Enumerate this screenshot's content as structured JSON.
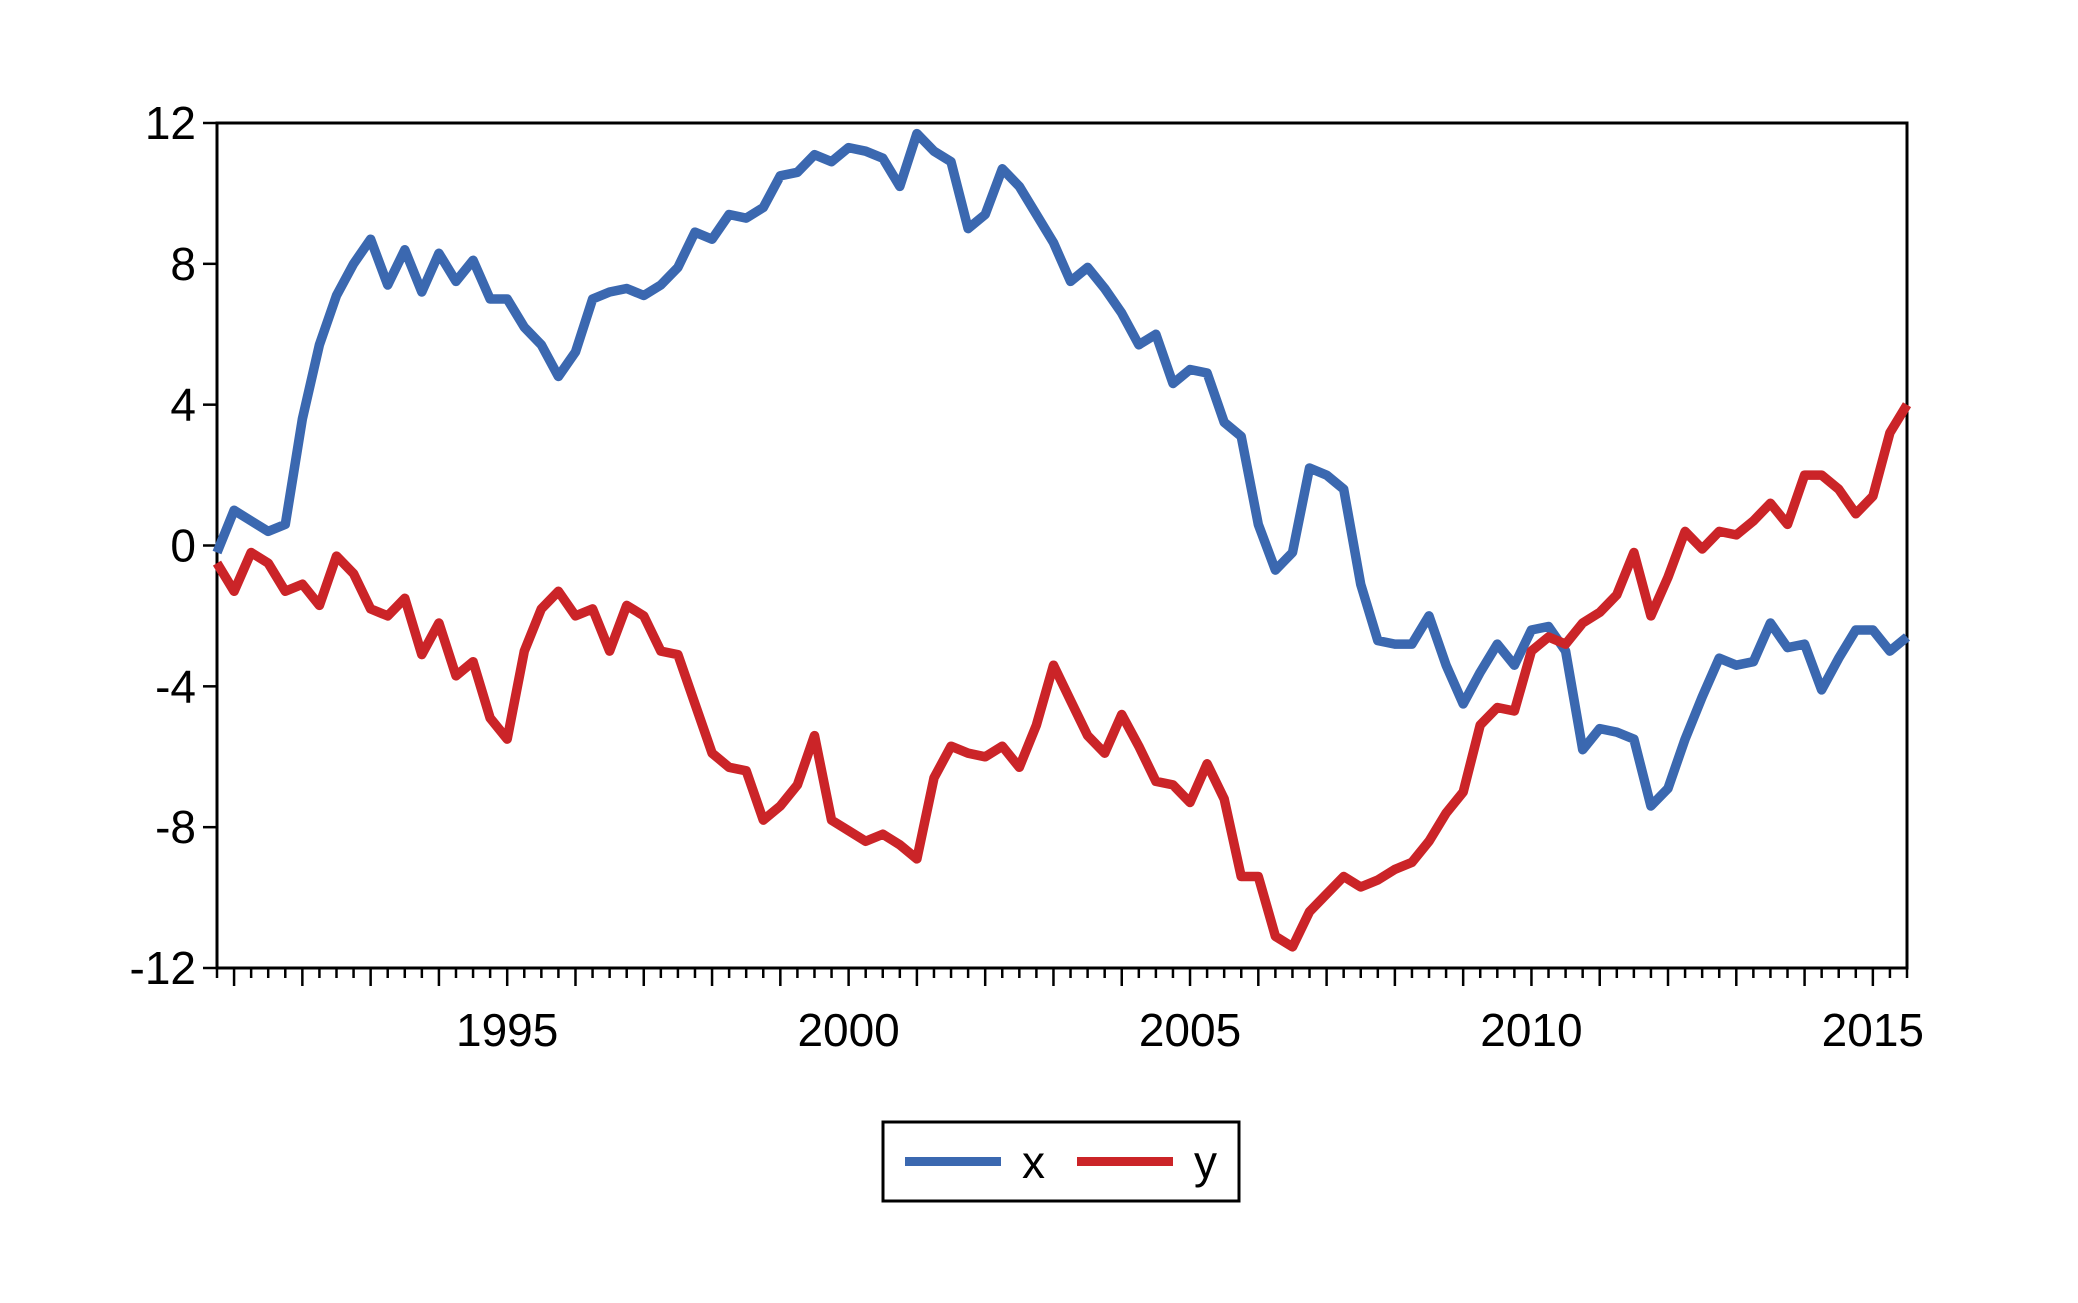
{
  "chart_data": {
    "type": "line",
    "title": "",
    "xlabel": "",
    "ylabel": "",
    "grid": false,
    "background_color": "#ffffff",
    "axis_color": "#000000",
    "frequency": "quarterly",
    "x_start": "1990Q4",
    "x_end": "2015Q3",
    "n_points": 100,
    "ylim": [
      -12,
      12
    ],
    "y_ticks": [
      12,
      8,
      4,
      0,
      -4,
      -8,
      -12
    ],
    "y_tick_labels": [
      "12",
      "8",
      "4",
      "0",
      "-4",
      "-8",
      "-12"
    ],
    "x_tick_labels": [
      "1995",
      "2000",
      "2005",
      "2010",
      "2015"
    ],
    "x_tick_label_indices": [
      17,
      37,
      57,
      77,
      97
    ],
    "legend": {
      "position": "bottom-center",
      "border": true,
      "entries": [
        {
          "label": "x",
          "color": "#3b68b0"
        },
        {
          "label": "y",
          "color": "#cb2428"
        }
      ]
    },
    "series": [
      {
        "name": "x",
        "color": "#3b68b0",
        "values": [
          -0.2,
          1.0,
          0.7,
          0.4,
          0.6,
          3.6,
          5.7,
          7.1,
          8.0,
          8.7,
          7.4,
          8.4,
          7.2,
          8.3,
          7.5,
          8.1,
          7.0,
          7.0,
          6.2,
          5.7,
          4.8,
          5.5,
          7.0,
          7.2,
          7.3,
          7.1,
          7.4,
          7.9,
          8.9,
          8.7,
          9.4,
          9.3,
          9.6,
          10.5,
          10.6,
          11.1,
          10.9,
          11.3,
          11.2,
          11.0,
          10.2,
          11.7,
          11.2,
          10.9,
          9.0,
          9.4,
          10.7,
          10.2,
          9.4,
          8.6,
          7.5,
          7.9,
          7.3,
          6.6,
          5.7,
          6.0,
          4.6,
          5.0,
          4.9,
          3.5,
          3.1,
          0.6,
          -0.7,
          -0.2,
          2.2,
          2.0,
          1.6,
          -1.1,
          -2.7,
          -2.8,
          -2.8,
          -2.0,
          -3.4,
          -4.5,
          -3.6,
          -2.8,
          -3.4,
          -2.4,
          -2.3,
          -3.0,
          -5.8,
          -5.2,
          -5.3,
          -5.5,
          -7.4,
          -6.9,
          -5.5,
          -4.3,
          -3.2,
          -3.4,
          -3.3,
          -2.2,
          -2.9,
          -2.8,
          -4.1,
          -3.2,
          -2.4,
          -2.4,
          -3.0,
          -2.6
        ]
      },
      {
        "name": "y",
        "color": "#cb2428",
        "values": [
          -0.5,
          -1.3,
          -0.2,
          -0.5,
          -1.3,
          -1.1,
          -1.7,
          -0.3,
          -0.8,
          -1.8,
          -2.0,
          -1.5,
          -3.1,
          -2.2,
          -3.7,
          -3.3,
          -4.9,
          -5.5,
          -3.0,
          -1.8,
          -1.3,
          -2.0,
          -1.8,
          -3.0,
          -1.7,
          -2.0,
          -3.0,
          -3.1,
          -4.5,
          -5.9,
          -6.3,
          -6.4,
          -7.8,
          -7.4,
          -6.8,
          -5.4,
          -7.8,
          -8.1,
          -8.4,
          -8.2,
          -8.5,
          -8.9,
          -6.6,
          -5.7,
          -5.9,
          -6.0,
          -5.7,
          -6.3,
          -5.1,
          -3.4,
          -4.4,
          -5.4,
          -5.9,
          -4.8,
          -5.7,
          -6.7,
          -6.8,
          -7.3,
          -6.2,
          -7.2,
          -9.4,
          -9.4,
          -11.1,
          -11.4,
          -10.4,
          -9.9,
          -9.4,
          -9.7,
          -9.5,
          -9.2,
          -9.0,
          -8.4,
          -7.6,
          -7.0,
          -5.1,
          -4.6,
          -4.7,
          -3.0,
          -2.6,
          -2.8,
          -2.2,
          -1.9,
          -1.4,
          -0.2,
          -2.0,
          -0.9,
          0.4,
          -0.1,
          0.4,
          0.3,
          0.7,
          1.2,
          0.6,
          2.0,
          2.0,
          1.6,
          0.9,
          1.4,
          3.2,
          4.0
        ]
      }
    ]
  }
}
